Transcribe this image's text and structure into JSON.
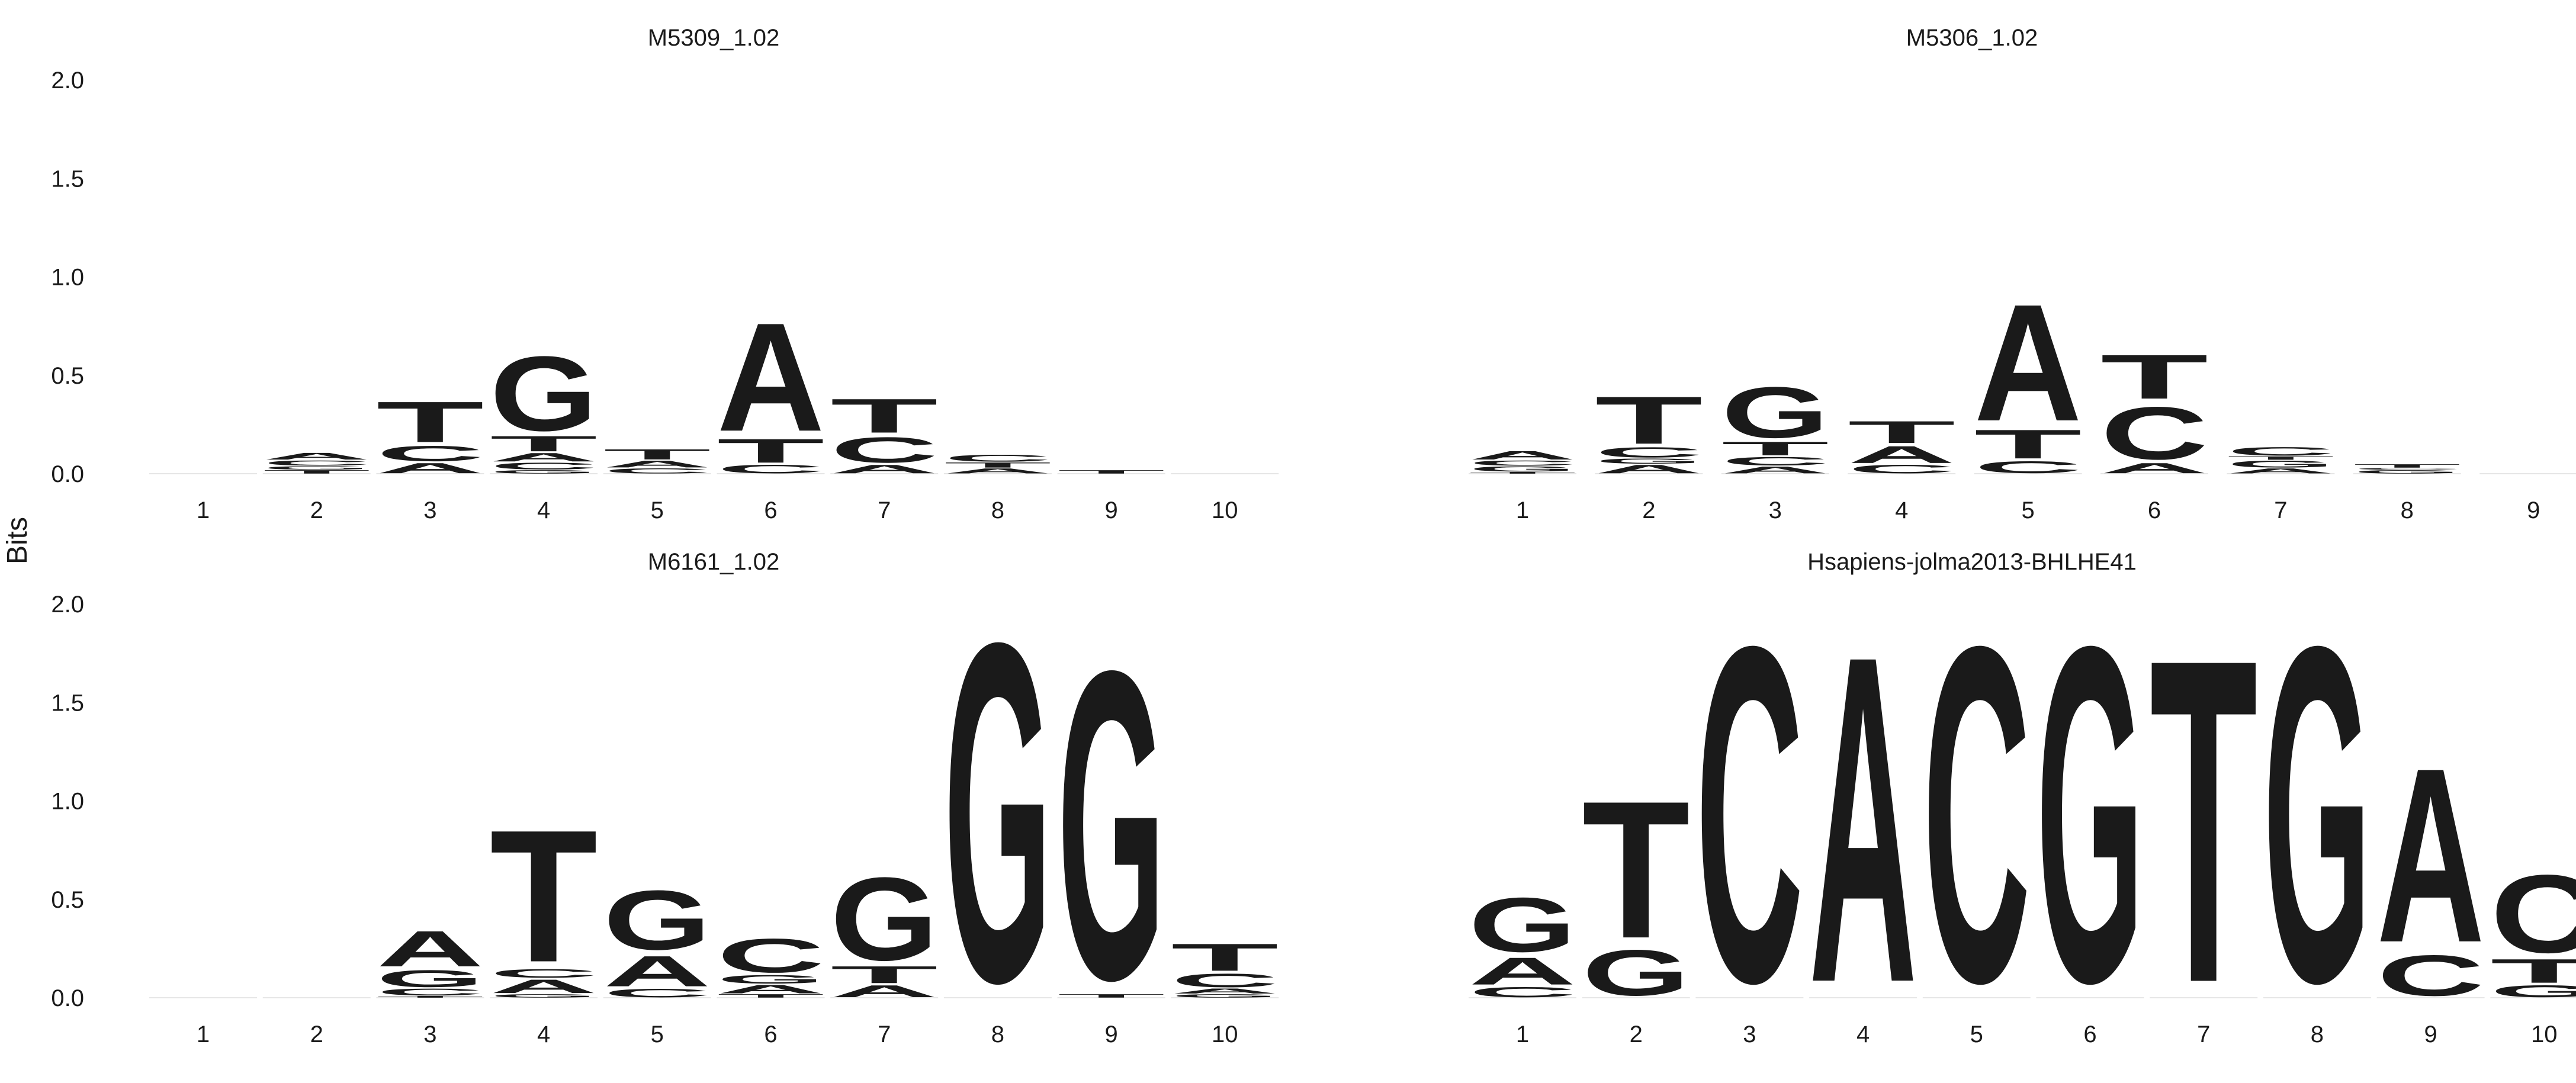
{
  "chart_data": {
    "type": "sequence-logo",
    "ylabel": "Bits",
    "ylim": [
      0,
      2
    ],
    "yticks": [
      "0.0",
      "0.5",
      "1.0",
      "1.5",
      "2.0"
    ],
    "colors": {
      "A": "#109648",
      "C": "#255C99",
      "G": "#F7B32B",
      "T": "#D62839"
    },
    "panels": [
      {
        "title": "M5309_1.02",
        "positions": [
          [],
          [
            [
              "T",
              0.02
            ],
            [
              "G",
              0.02
            ],
            [
              "C",
              0.03
            ],
            [
              "A",
              0.04
            ]
          ],
          [
            [
              "A",
              0.06
            ],
            [
              "C",
              0.09
            ],
            [
              "T",
              0.24
            ]
          ],
          [
            [
              "G",
              0.02
            ],
            [
              "C",
              0.04
            ],
            [
              "A",
              0.05
            ],
            [
              "T",
              0.09
            ],
            [
              "G",
              0.44
            ]
          ],
          [
            [
              "C",
              0.03
            ],
            [
              "A",
              0.04
            ],
            [
              "T",
              0.06
            ]
          ],
          [
            [
              "C",
              0.05
            ],
            [
              "T",
              0.14
            ],
            [
              "A",
              0.64
            ]
          ],
          [
            [
              "A",
              0.05
            ],
            [
              "C",
              0.15
            ],
            [
              "T",
              0.2
            ]
          ],
          [
            [
              "A",
              0.03
            ],
            [
              "T",
              0.03
            ],
            [
              "C",
              0.04
            ]
          ],
          [
            [
              "T",
              0.02
            ]
          ],
          []
        ]
      },
      {
        "title": "M5306_1.02",
        "positions": [
          [
            [
              "T",
              0.01
            ],
            [
              "G",
              0.03
            ],
            [
              "C",
              0.03
            ],
            [
              "A",
              0.05
            ]
          ],
          [
            [
              "A",
              0.05
            ],
            [
              "G",
              0.03
            ],
            [
              "C",
              0.06
            ],
            [
              "T",
              0.28
            ]
          ],
          [
            [
              "A",
              0.04
            ],
            [
              "C",
              0.05
            ],
            [
              "T",
              0.08
            ],
            [
              "G",
              0.3
            ]
          ],
          [
            [
              "C",
              0.05
            ],
            [
              "A",
              0.1
            ],
            [
              "T",
              0.13
            ]
          ],
          [
            [
              "C",
              0.07
            ],
            [
              "T",
              0.17
            ],
            [
              "A",
              0.69
            ]
          ],
          [
            [
              "A",
              0.06
            ],
            [
              "C",
              0.31
            ],
            [
              "T",
              0.26
            ]
          ],
          [
            [
              "A",
              0.03
            ],
            [
              "G",
              0.04
            ],
            [
              "T",
              0.02
            ],
            [
              "C",
              0.05
            ]
          ],
          [
            [
              "G",
              0.02
            ],
            [
              "C",
              0.01
            ],
            [
              "T",
              0.02
            ]
          ],
          []
        ]
      },
      {
        "title": "M6161_1.02",
        "positions": [
          [],
          [],
          [
            [
              "T",
              0.01
            ],
            [
              "C",
              0.04
            ],
            [
              "G",
              0.1
            ],
            [
              "A",
              0.21
            ]
          ],
          [
            [
              "G",
              0.02
            ],
            [
              "A",
              0.08
            ],
            [
              "C",
              0.05
            ],
            [
              "T",
              0.78
            ]
          ],
          [
            [
              "C",
              0.05
            ],
            [
              "A",
              0.18
            ],
            [
              "G",
              0.35
            ]
          ],
          [
            [
              "T",
              0.02
            ],
            [
              "A",
              0.05
            ],
            [
              "G",
              0.05
            ],
            [
              "C",
              0.2
            ]
          ],
          [
            [
              "A",
              0.07
            ],
            [
              "T",
              0.1
            ],
            [
              "G",
              0.49
            ]
          ],
          [
            [
              "G",
              2.0
            ]
          ],
          [
            [
              "T",
              0.02
            ],
            [
              "G",
              1.82
            ]
          ],
          [
            [
              "G",
              0.02
            ],
            [
              "A",
              0.03
            ],
            [
              "C",
              0.08
            ],
            [
              "T",
              0.16
            ]
          ]
        ]
      },
      {
        "title": "Hsapiens-jolma2013-BHLHE41",
        "positions": [
          [
            [
              "C",
              0.06
            ],
            [
              "A",
              0.16
            ],
            [
              "G",
              0.32
            ]
          ],
          [
            [
              "G",
              0.27
            ],
            [
              "T",
              0.81
            ]
          ],
          [
            [
              "C",
              1.98
            ]
          ],
          [
            [
              "A",
              1.93
            ]
          ],
          [
            [
              "C",
              1.98
            ]
          ],
          [
            [
              "G",
              1.98
            ]
          ],
          [
            [
              "T",
              1.91
            ]
          ],
          [
            [
              "G",
              1.98
            ]
          ],
          [
            [
              "C",
              0.24
            ],
            [
              "A",
              1.03
            ]
          ],
          [
            [
              "G",
              0.07
            ],
            [
              "T",
              0.14
            ],
            [
              "C",
              0.46
            ]
          ]
        ]
      }
    ]
  }
}
